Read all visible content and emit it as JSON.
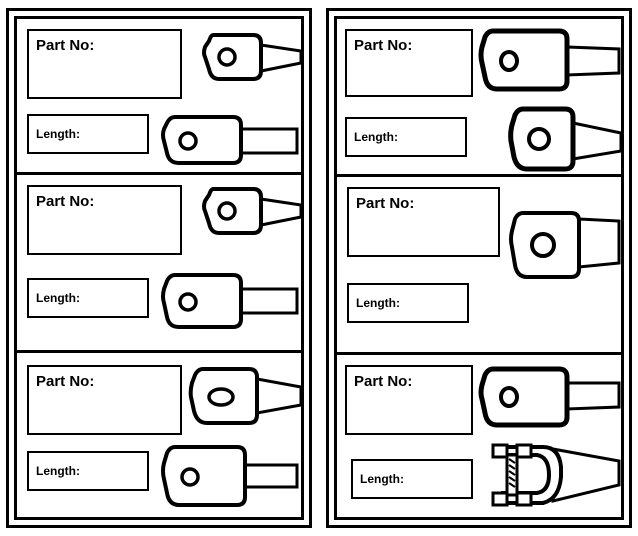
{
  "labels": {
    "part_no": "Part No:",
    "length": "Length:"
  },
  "colors": {
    "ink": "#000000",
    "paper": "#ffffff"
  },
  "icons": [
    "cable-lug-icon",
    "clevis-fork-icon"
  ]
}
